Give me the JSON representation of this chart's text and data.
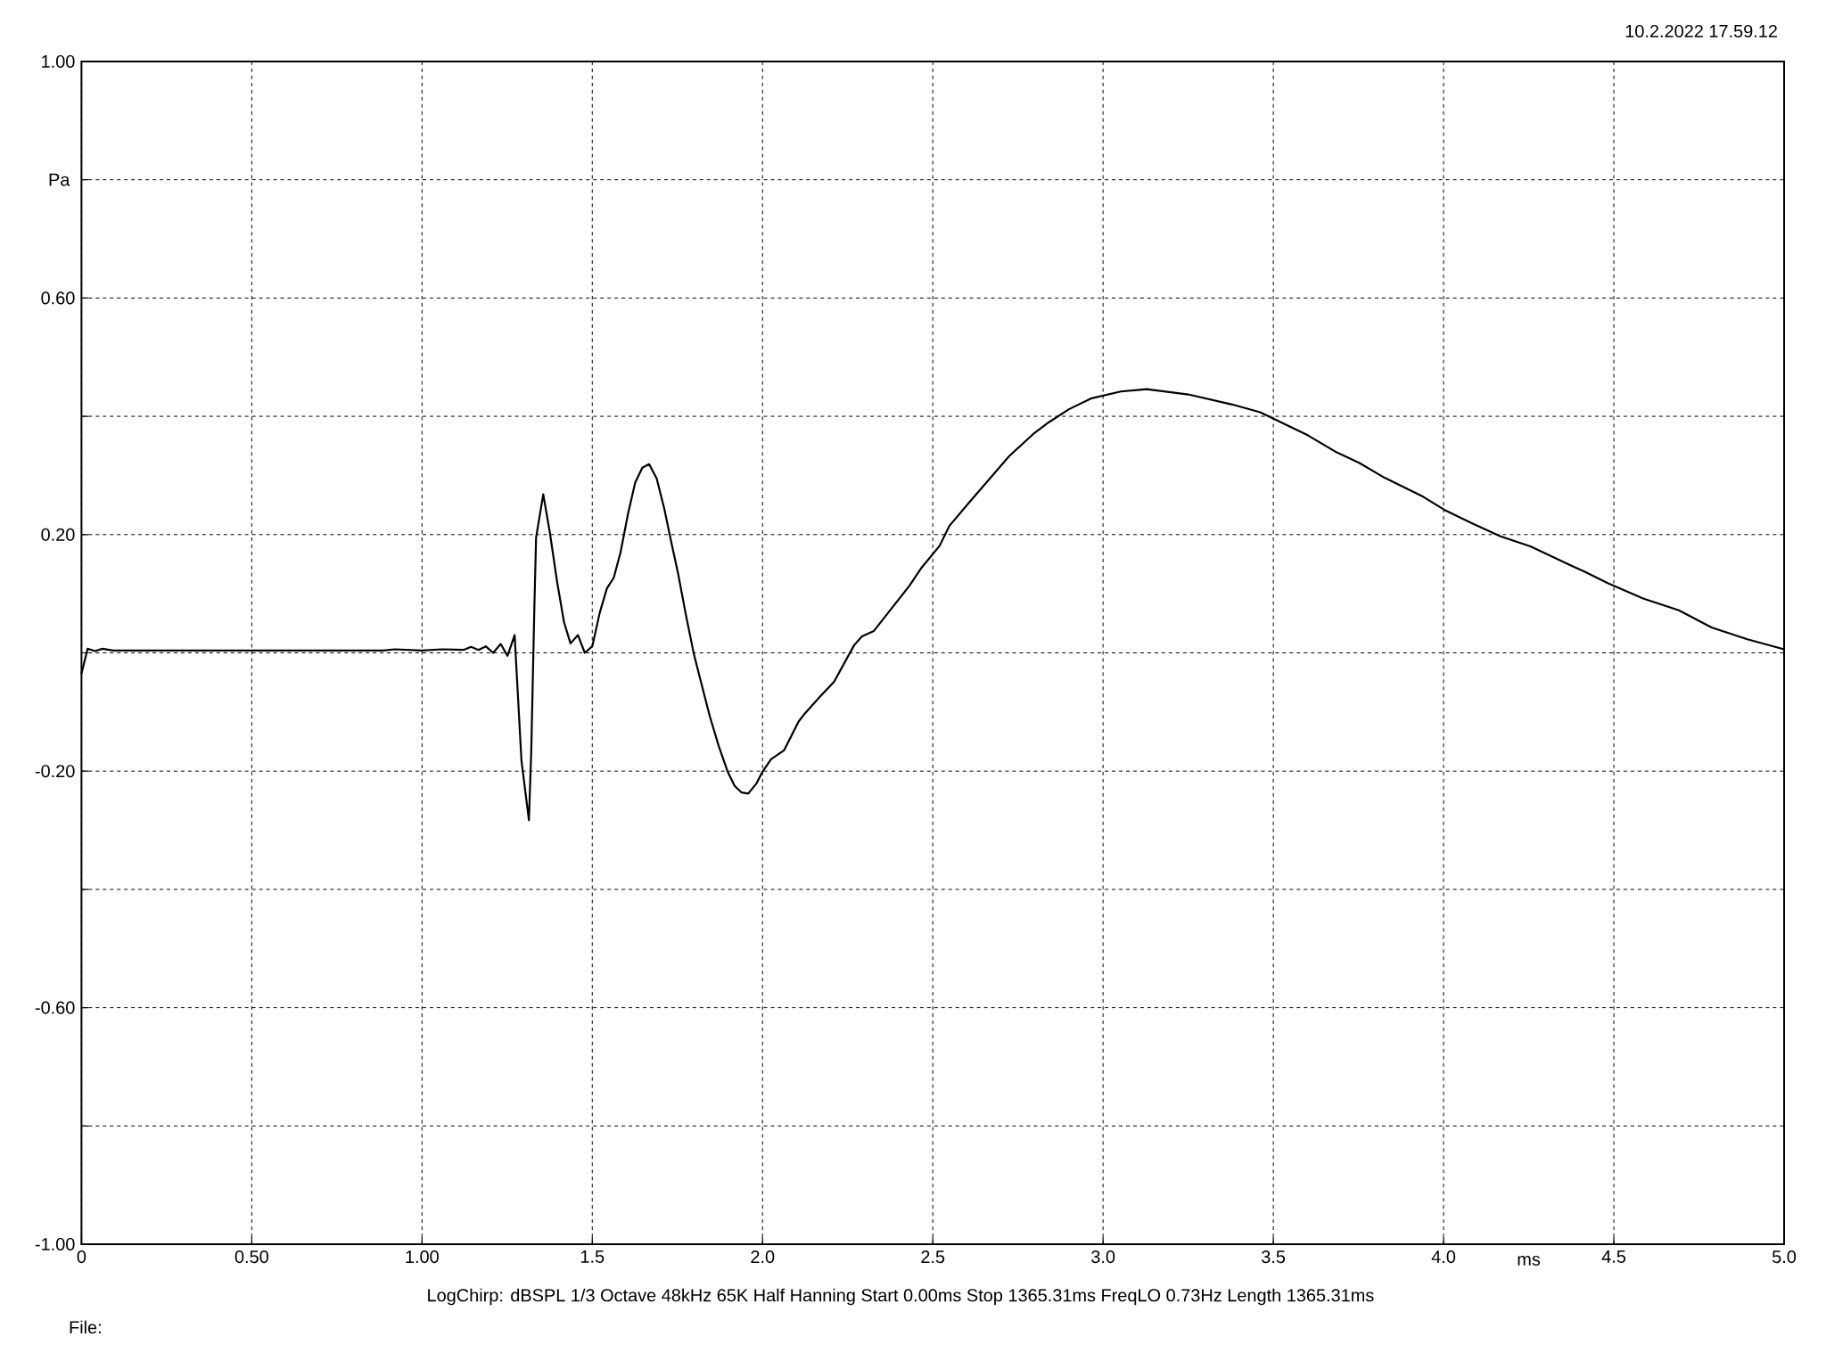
{
  "chart_data": {
    "type": "line",
    "ylabel": "Pa",
    "xlabel": "ms",
    "annotations": [
      "10.2.2022 17.59.12",
      "LogChirp:  dBSPL   1/3 Octave   48kHz   65K   Half Hanning   Start 0.00ms    Stop 1365.31ms    FreqLO 0.73Hz    Length 1365.31ms",
      "File:"
    ],
    "xlim": [
      0,
      5
    ],
    "ylim": [
      -1,
      1
    ],
    "xticks": [
      0,
      {
        "value": 0.5,
        "label": "0.50"
      },
      {
        "value": 1,
        "label": "1.00"
      },
      1.5,
      {
        "value": 2,
        "label": "2.0"
      },
      2.5,
      {
        "value": 3,
        "label": "3.0"
      },
      3.5,
      {
        "value": 4,
        "label": "4.0"
      },
      4.5,
      {
        "value": 5,
        "label": "5.0"
      }
    ],
    "yticks": [
      {
        "value": 1,
        "label": "1.00"
      },
      {
        "value": 0.8,
        "label": null
      },
      {
        "value": 0.6,
        "label": "0.60"
      },
      {
        "value": 0.4,
        "label": null
      },
      {
        "value": 0.2,
        "label": "0.20"
      },
      {
        "value": 0,
        "label": null
      },
      {
        "value": -0.2,
        "label": "-0.20"
      },
      {
        "value": -0.4,
        "label": null
      },
      {
        "value": -0.6,
        "label": "-0.60"
      },
      {
        "value": -0.8,
        "label": null
      },
      {
        "value": -1,
        "label": "-1.00"
      }
    ],
    "grid": true,
    "marker": "none",
    "x": [
      0,
      0.018,
      0.04,
      0.062,
      0.092,
      0.5,
      0.886,
      0.92,
      1.0,
      1.06,
      1.122,
      1.144,
      1.166,
      1.187,
      1.209,
      1.231,
      1.251,
      1.272,
      1.292,
      1.314,
      1.321,
      1.33,
      1.335,
      1.356,
      1.375,
      1.397,
      1.417,
      1.436,
      1.458,
      1.478,
      1.5,
      1.522,
      1.543,
      1.563,
      1.583,
      1.605,
      1.626,
      1.647,
      1.667,
      1.689,
      1.711,
      1.731,
      1.752,
      1.775,
      1.798,
      1.82,
      1.845,
      1.871,
      1.897,
      1.918,
      1.938,
      1.958,
      1.982,
      2.0,
      2.025,
      2.063,
      2.106,
      2.125,
      2.169,
      2.21,
      2.269,
      2.292,
      2.327,
      2.432,
      2.467,
      2.52,
      2.549,
      2.608,
      2.725,
      2.795,
      2.841,
      2.9,
      2.964,
      3.052,
      3.128,
      3.25,
      3.379,
      3.461,
      3.601,
      3.683,
      3.753,
      3.827,
      3.94,
      4.002,
      4.08,
      4.167,
      4.255,
      4.377,
      4.412,
      4.482,
      4.586,
      4.691,
      4.787,
      4.892,
      5.0
    ],
    "series": [
      {
        "color": "#000000",
        "values": [
          -0.035,
          0.007,
          0.003,
          0.007,
          0.004,
          0.004,
          0.004,
          0.006,
          0.004,
          0.006,
          0.005,
          0.01,
          0.005,
          0.011,
          0.0,
          0.015,
          -0.005,
          0.03,
          -0.182,
          -0.283,
          -0.162,
          0.079,
          0.195,
          0.268,
          0.205,
          0.119,
          0.052,
          0.016,
          0.03,
          0.0,
          0.011,
          0.068,
          0.109,
          0.127,
          0.17,
          0.235,
          0.288,
          0.313,
          0.319,
          0.295,
          0.245,
          0.19,
          0.134,
          0.064,
          -0.001,
          -0.051,
          -0.107,
          -0.157,
          -0.2,
          -0.225,
          -0.236,
          -0.238,
          -0.221,
          -0.201,
          -0.18,
          -0.165,
          -0.116,
          -0.102,
          -0.074,
          -0.049,
          0.013,
          0.028,
          0.037,
          0.114,
          0.144,
          0.181,
          0.215,
          0.255,
          0.333,
          0.37,
          0.39,
          0.412,
          0.43,
          0.442,
          0.446,
          0.437,
          0.42,
          0.407,
          0.368,
          0.34,
          0.321,
          0.296,
          0.264,
          0.242,
          0.22,
          0.197,
          0.18,
          0.147,
          0.138,
          0.118,
          0.092,
          0.072,
          0.043,
          0.023,
          0.006
        ]
      }
    ]
  }
}
